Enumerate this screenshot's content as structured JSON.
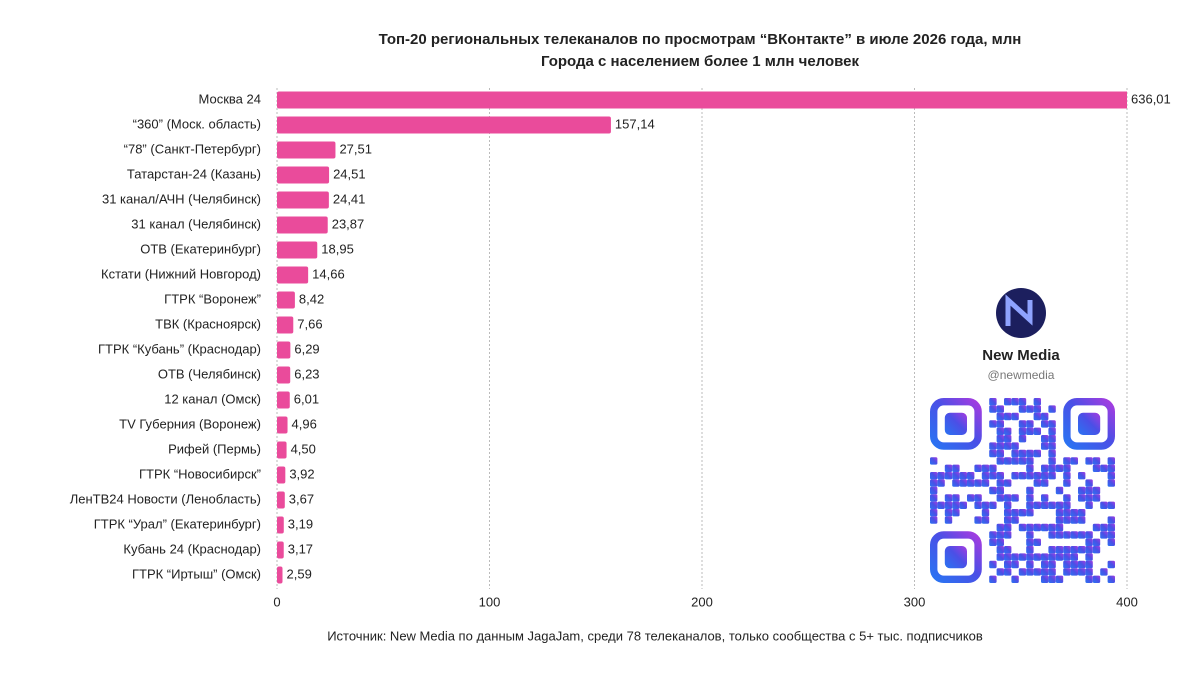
{
  "chart_data": {
    "type": "bar",
    "orientation": "horizontal",
    "title": "Топ-20 региональных телеканалов по просмотрам “ВКонтакте” в июле 2026 года, млн",
    "subtitle": "Города с населением более 1 млн человек",
    "categories": [
      "Москва 24",
      "“360” (Моск. область)",
      "“78” (Санкт-Петербург)",
      "Татарстан-24 (Казань)",
      "31 канал/АЧН (Челябинск)",
      "31 канал (Челябинск)",
      "ОТВ (Екатеринбург)",
      "Кстати (Нижний Новгород)",
      "ГТРК “Воронеж”",
      "ТВК (Красноярск)",
      "ГТРК “Кубань” (Краснодар)",
      "ОТВ (Челябинск)",
      "12 канал (Омск)",
      "TV Губерния (Воронеж)",
      "Рифей (Пермь)",
      "ГТРК “Новосибирск”",
      "ЛенТВ24 Новости (Ленобласть)",
      "ГТРК “Урал” (Екатеринбург)",
      "Кубань 24 (Краснодар)",
      "ГТРК “Иртыш” (Омск)"
    ],
    "values": [
      636.01,
      157.14,
      27.51,
      24.51,
      24.41,
      23.87,
      18.95,
      14.66,
      8.42,
      7.66,
      6.29,
      6.23,
      6.01,
      4.96,
      4.5,
      3.92,
      3.67,
      3.19,
      3.17,
      2.59
    ],
    "value_labels": [
      "636,01",
      "157,14",
      "27,51",
      "24,51",
      "24,41",
      "23,87",
      "18,95",
      "14,66",
      "8,42",
      "7,66",
      "6,29",
      "6,23",
      "6,01",
      "4,96",
      "4,50",
      "3,92",
      "3,67",
      "3,19",
      "3,17",
      "2,59"
    ],
    "color": "#ea4b9b",
    "xlim": [
      0,
      400
    ],
    "xticks": [
      0,
      100,
      200,
      300,
      400
    ],
    "grid": true,
    "source": "Источник: New Media по данным JagaJam, среди 78 телеканалов, только сообщества с 5+ тыс. подписчиков"
  },
  "branding": {
    "name": "New Media",
    "handle": "@newmedia"
  }
}
